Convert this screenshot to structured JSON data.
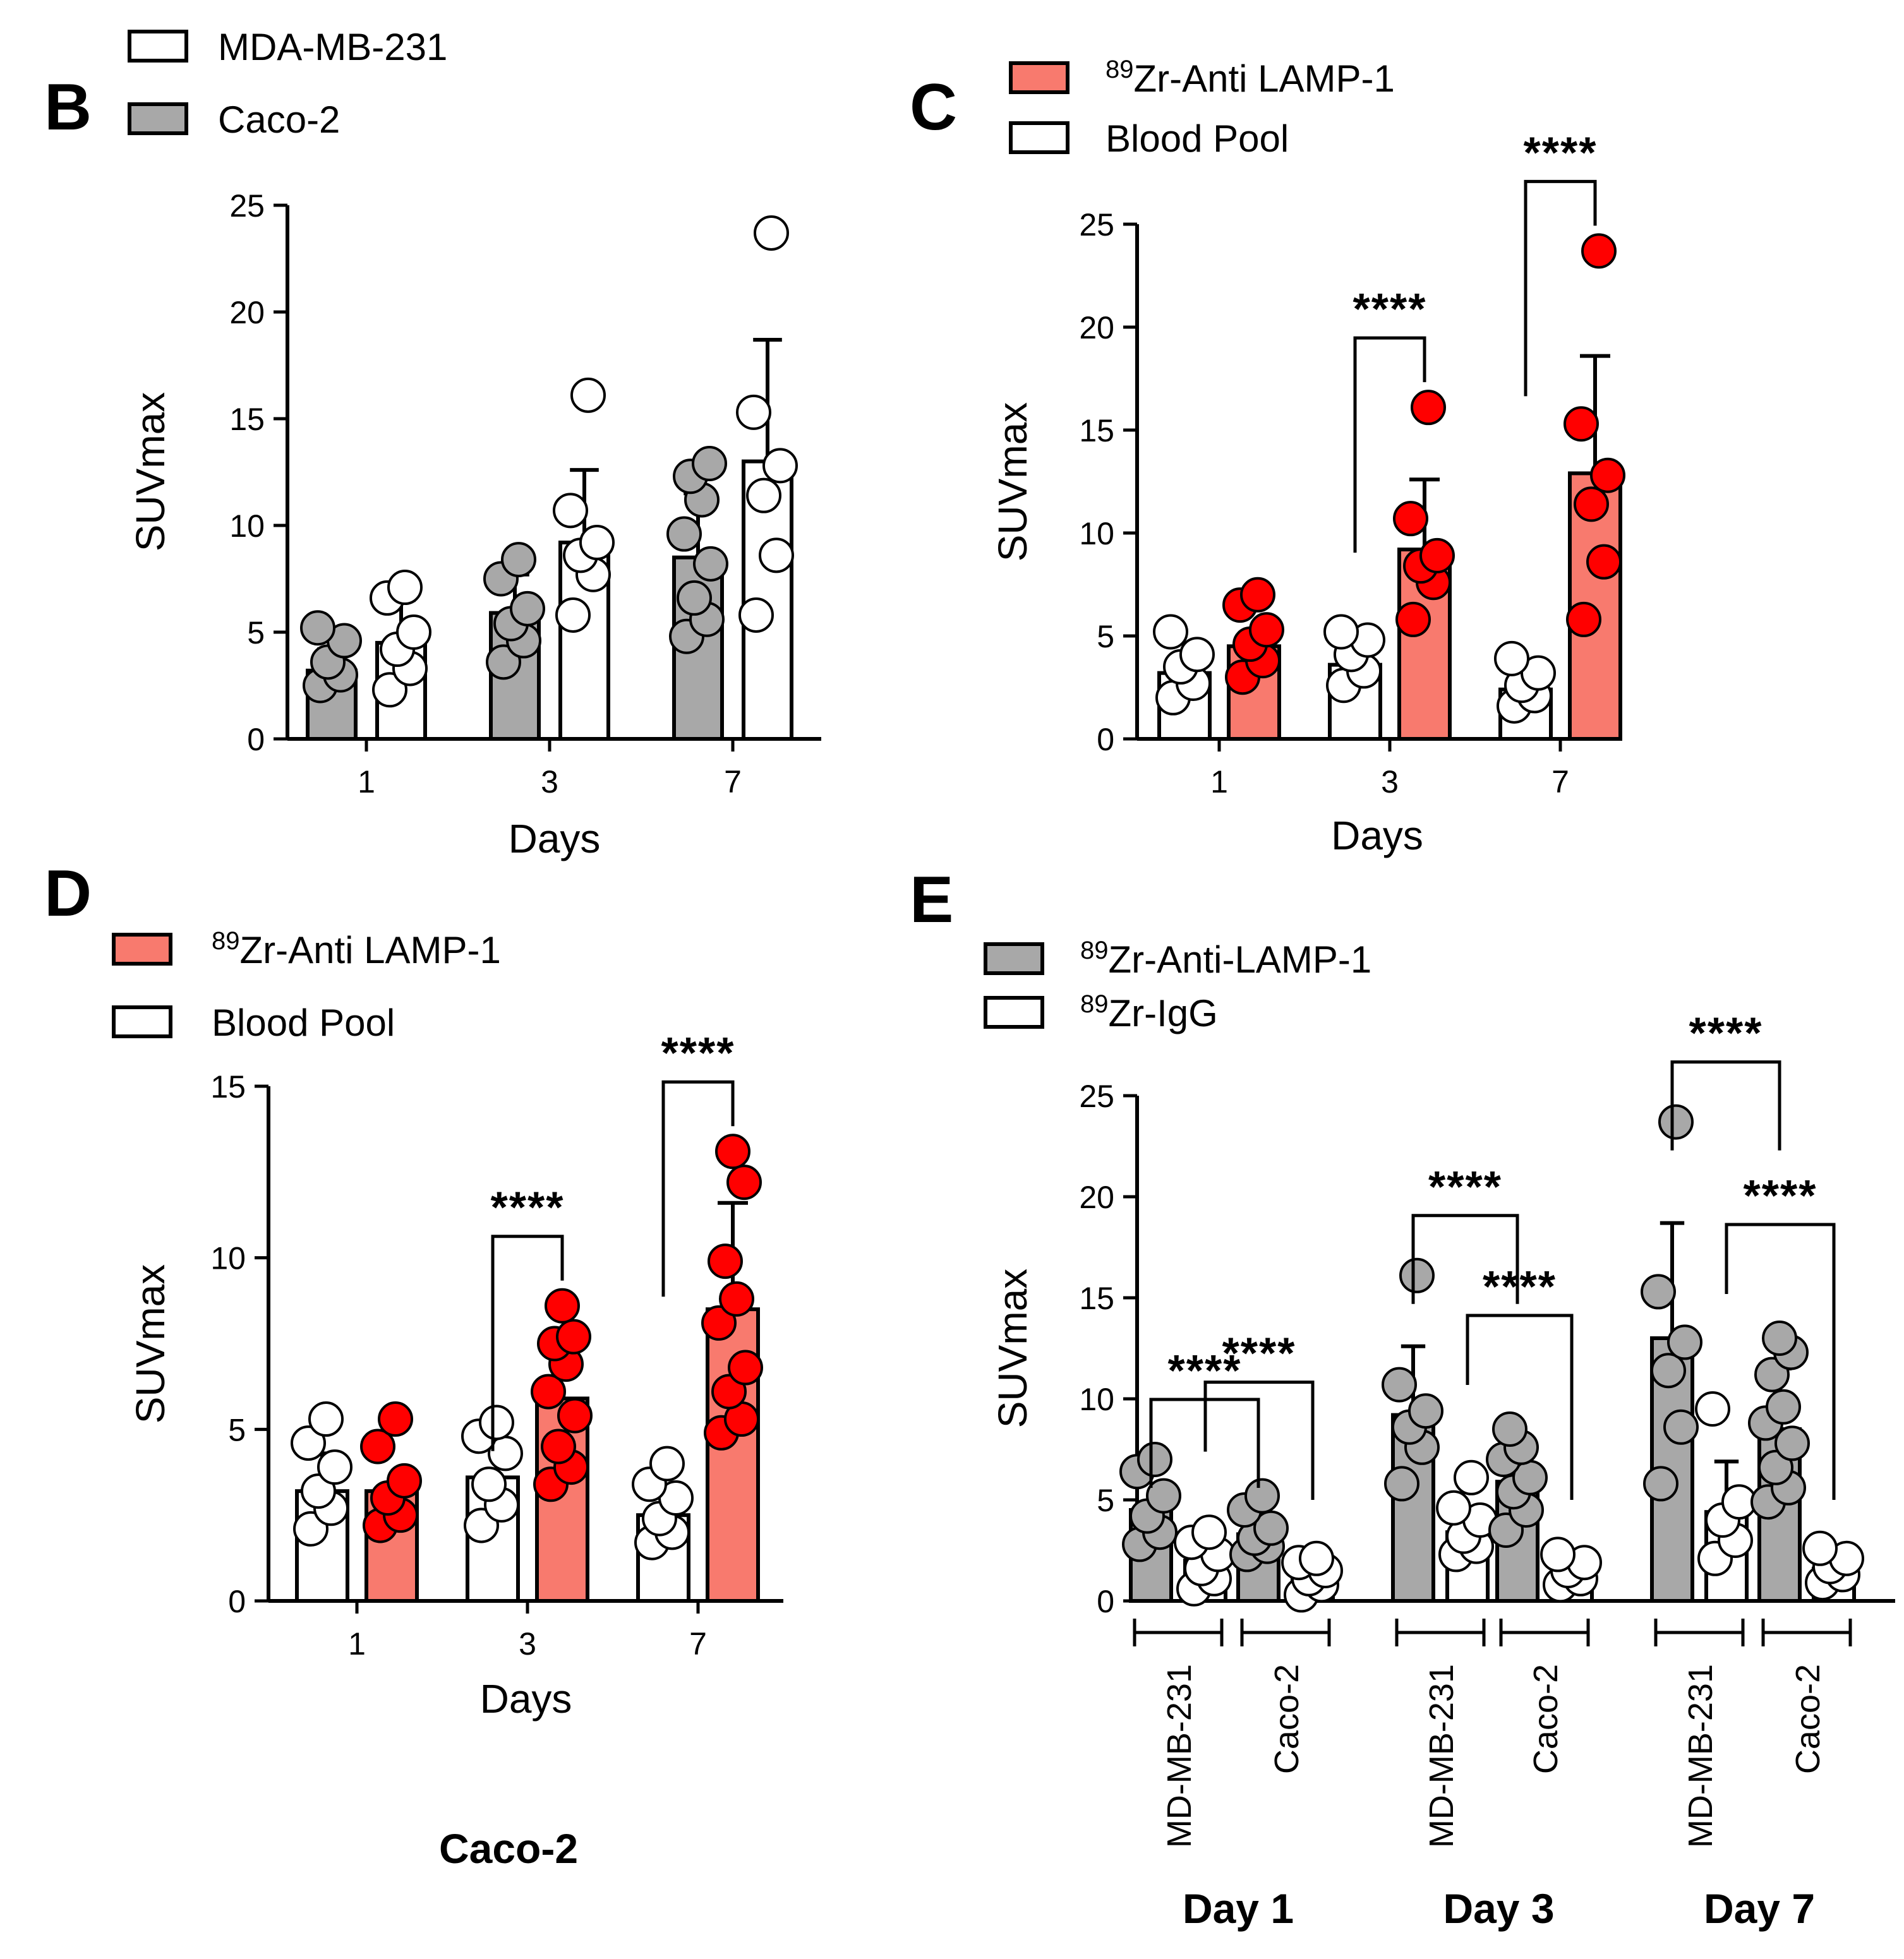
{
  "colors": {
    "red": "#ff0000",
    "salmon": "#f87a6e",
    "gray": "#a8a8a8",
    "white": "#ffffff",
    "black": "#000000"
  },
  "chart_data": [
    {
      "id": "B",
      "type": "bar",
      "panel_label": "B",
      "xlabel": "Days",
      "ylabel": "SUVmax",
      "ylim": [
        0,
        25
      ],
      "yticks": [
        0,
        5,
        10,
        15,
        20,
        25
      ],
      "categories": [
        "1",
        "3",
        "7"
      ],
      "legend": [
        {
          "label": "MDA-MB-231",
          "style": "white"
        },
        {
          "label": "Caco-2",
          "style": "gray"
        }
      ],
      "series": [
        {
          "name": "Caco-2",
          "style": "gray",
          "values": [
            3.2,
            5.9,
            8.5
          ],
          "errors": [
            1.0,
            1.8,
            3.0
          ],
          "points": [
            [
              2.5,
              3.0,
              3.6,
              4.6,
              5.2
            ],
            [
              3.6,
              4.6,
              5.4,
              6.1,
              7.5,
              8.4
            ],
            [
              4.8,
              5.6,
              6.6,
              8.2,
              9.6,
              11.2,
              12.3,
              12.9
            ]
          ]
        },
        {
          "name": "MDA-MB-231",
          "style": "white",
          "values": [
            4.5,
            9.2,
            13.0
          ],
          "errors": [
            2.0,
            3.4,
            5.7
          ],
          "points": [
            [
              2.3,
              3.3,
              4.2,
              5.0,
              6.6,
              7.1
            ],
            [
              5.8,
              7.7,
              8.6,
              9.2,
              10.7,
              16.1
            ],
            [
              5.8,
              8.6,
              11.4,
              12.8,
              15.3,
              23.7
            ]
          ]
        }
      ]
    },
    {
      "id": "C",
      "type": "bar",
      "panel_label": "C",
      "xlabel": "Days",
      "ylabel": "SUVmax",
      "ylim": [
        0,
        25
      ],
      "yticks": [
        0,
        5,
        10,
        15,
        20,
        25
      ],
      "categories": [
        "1",
        "3",
        "7"
      ],
      "legend": [
        {
          "label": "Zr-Anti LAMP-1",
          "sup": "89",
          "style": "salmon"
        },
        {
          "label": "Blood Pool",
          "style": "white"
        }
      ],
      "series": [
        {
          "name": "Blood Pool",
          "style": "white",
          "values": [
            3.2,
            3.6,
            2.4
          ],
          "errors": [
            0,
            0,
            0
          ],
          "points": [
            [
              2.0,
              2.7,
              3.5,
              4.1,
              5.2
            ],
            [
              2.6,
              3.3,
              4.1,
              4.8,
              5.2
            ],
            [
              1.6,
              2.1,
              2.6,
              3.2,
              3.9
            ]
          ]
        },
        {
          "name": "89Zr-Anti LAMP-1",
          "style": "salmon",
          "values": [
            4.5,
            9.2,
            12.9
          ],
          "errors": [
            0,
            3.4,
            5.7
          ],
          "points": [
            [
              3.0,
              3.8,
              4.6,
              5.3,
              6.5,
              7.0
            ],
            [
              5.8,
              7.6,
              8.4,
              8.9,
              10.7,
              16.1
            ],
            [
              5.8,
              8.6,
              11.4,
              12.8,
              15.3,
              23.7
            ]
          ]
        }
      ],
      "significance": [
        {
          "category": 1,
          "label": "****"
        },
        {
          "category": 2,
          "label": "****"
        }
      ]
    },
    {
      "id": "D",
      "type": "bar",
      "panel_label": "D",
      "xlabel": "Days",
      "ylabel": "SUVmax",
      "ylim": [
        0,
        15
      ],
      "yticks": [
        0,
        5,
        10,
        15
      ],
      "categories": [
        "1",
        "3",
        "7"
      ],
      "legend": [
        {
          "label": "Zr-Anti LAMP-1",
          "sup": "89",
          "style": "salmon"
        },
        {
          "label": "Blood Pool",
          "style": "white"
        }
      ],
      "series": [
        {
          "name": "Blood Pool",
          "style": "white",
          "values": [
            3.2,
            3.6,
            2.5
          ],
          "errors": [
            1.1,
            0,
            0
          ],
          "points": [
            [
              2.1,
              2.7,
              3.2,
              3.9,
              4.6,
              5.3
            ],
            [
              2.2,
              2.8,
              3.4,
              4.3,
              4.8,
              5.2
            ],
            [
              1.7,
              2.0,
              2.4,
              3.0,
              3.4,
              4.0
            ]
          ]
        },
        {
          "name": "89Zr-Anti LAMP-1",
          "style": "salmon",
          "values": [
            3.2,
            5.9,
            8.5
          ],
          "errors": [
            0,
            0,
            3.1
          ],
          "points": [
            [
              2.2,
              2.5,
              3.0,
              3.5,
              4.5,
              5.3
            ],
            [
              3.4,
              3.9,
              4.5,
              5.4,
              6.1,
              6.9,
              7.5,
              7.7,
              8.6
            ],
            [
              4.9,
              5.3,
              6.1,
              6.8,
              8.1,
              8.8,
              9.9,
              12.2,
              13.1
            ]
          ]
        }
      ],
      "significance": [
        {
          "category": 1,
          "label": "****"
        },
        {
          "category": 2,
          "label": "****"
        }
      ],
      "footer_label": "Caco-2"
    },
    {
      "id": "E",
      "type": "bar",
      "panel_label": "E",
      "ylabel": "SUVmax",
      "ylim": [
        0,
        25
      ],
      "yticks": [
        0,
        5,
        10,
        15,
        20,
        25
      ],
      "legend": [
        {
          "label": "Zr-Anti-LAMP-1",
          "sup": "89",
          "style": "gray"
        },
        {
          "label": "Zr-IgG",
          "sup": "89",
          "style": "white"
        }
      ],
      "groups": [
        {
          "label": "Day 1",
          "cells": [
            {
              "name": "MD-MB-231",
              "bars": [
                {
                  "style": "gray",
                  "value": 4.5,
                  "error": 0,
                  "points": [
                    2.8,
                    3.4,
                    4.2,
                    5.2,
                    6.4,
                    7.0
                  ]
                },
                {
                  "style": "white",
                  "value": 2.0,
                  "error": 0,
                  "points": [
                    0.6,
                    1.1,
                    1.6,
                    2.3,
                    2.9,
                    3.4
                  ]
                }
              ]
            },
            {
              "name": "Caco-2",
              "bars": [
                {
                  "style": "gray",
                  "value": 3.3,
                  "error": 0,
                  "points": [
                    2.3,
                    2.7,
                    3.1,
                    3.6,
                    4.5,
                    5.2
                  ]
                },
                {
                  "style": "white",
                  "value": 1.3,
                  "error": 0,
                  "points": [
                    0.3,
                    0.8,
                    1.1,
                    1.5,
                    1.9,
                    2.1
                  ]
                }
              ]
            }
          ]
        },
        {
          "label": "Day 3",
          "cells": [
            {
              "name": "MD-MB-231",
              "bars": [
                {
                  "style": "gray",
                  "value": 9.2,
                  "error": 3.4,
                  "points": [
                    5.8,
                    7.6,
                    8.6,
                    9.4,
                    10.7,
                    16.1
                  ]
                },
                {
                  "style": "white",
                  "value": 3.4,
                  "error": 1.2,
                  "points": [
                    2.3,
                    2.7,
                    3.2,
                    4.0,
                    4.6,
                    6.1
                  ]
                }
              ]
            },
            {
              "name": "Caco-2",
              "bars": [
                {
                  "style": "gray",
                  "value": 5.9,
                  "error": 0,
                  "points": [
                    3.5,
                    4.5,
                    5.4,
                    6.1,
                    7.0,
                    7.6,
                    8.5
                  ]
                },
                {
                  "style": "white",
                  "value": 1.4,
                  "error": 0,
                  "points": [
                    0.8,
                    1.1,
                    1.5,
                    1.9,
                    2.3
                  ]
                }
              ]
            }
          ]
        },
        {
          "label": "Day 7",
          "cells": [
            {
              "name": "MD-MB-231",
              "bars": [
                {
                  "style": "gray",
                  "value": 13.0,
                  "error": 5.7,
                  "points": [
                    5.8,
                    8.6,
                    11.4,
                    12.8,
                    15.3,
                    23.7
                  ]
                },
                {
                  "style": "white",
                  "value": 4.4,
                  "error": 2.5,
                  "points": [
                    2.1,
                    3.0,
                    4.0,
                    4.9,
                    9.5
                  ]
                }
              ]
            },
            {
              "name": "Caco-2",
              "bars": [
                {
                  "style": "gray",
                  "value": 8.5,
                  "error": 3.0,
                  "points": [
                    4.9,
                    5.6,
                    6.6,
                    7.8,
                    8.8,
                    9.6,
                    11.2,
                    12.3,
                    13.0
                  ]
                },
                {
                  "style": "white",
                  "value": 1.6,
                  "error": 0,
                  "points": [
                    0.9,
                    1.3,
                    1.7,
                    2.1,
                    2.6
                  ]
                }
              ]
            }
          ]
        }
      ],
      "significance": [
        {
          "group": 0,
          "pair": "between-cells",
          "label": "****"
        },
        {
          "group": 0,
          "pair": "within-caco",
          "label": "****"
        },
        {
          "group": 1,
          "pair": "between-cells",
          "label": "****"
        },
        {
          "group": 1,
          "pair": "within-caco",
          "label": "****"
        },
        {
          "group": 2,
          "pair": "between-cells",
          "label": "****"
        },
        {
          "group": 2,
          "pair": "within-caco",
          "label": "****"
        }
      ]
    }
  ]
}
